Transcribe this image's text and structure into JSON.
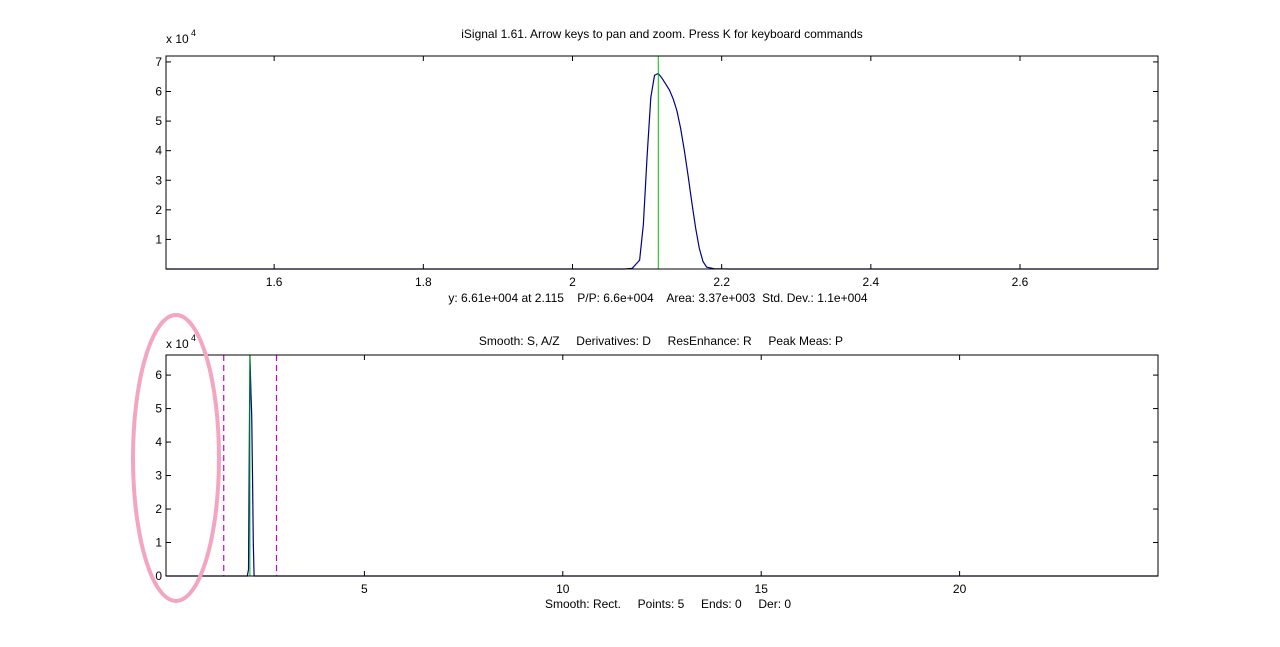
{
  "window": {
    "title": "iSignal 1.61. Arrow keys to pan and zoom. Press K for keyboard commands"
  },
  "colors": {
    "signal": "#00008b",
    "cursor": "#00c000",
    "range_marker": "#cc00cc",
    "annotation_ellipse": "#f4a6c1",
    "axis": "#000000"
  },
  "chart_data": [
    {
      "type": "line",
      "title": "iSignal 1.61. Arrow keys to pan and zoom. Press K for keyboard commands",
      "xlabel": "y: 6.61e+004 at 2.115    P/P: 6.6e+004    Area: 3.37e+003  Std. Dev.: 1.1e+004",
      "ylabel": "",
      "y_exponent_base": "x 10",
      "y_exponent_power": "4",
      "xlim": [
        1.455,
        2.785
      ],
      "ylim": [
        0,
        72000
      ],
      "xticks": [
        1.6,
        1.8,
        2.0,
        2.2,
        2.4,
        2.6
      ],
      "xtick_labels": [
        "1.6",
        "1.8",
        "2",
        "2.2",
        "2.4",
        "2.6"
      ],
      "yticks": [
        10000,
        20000,
        30000,
        40000,
        50000,
        60000,
        70000
      ],
      "ytick_labels": [
        "1",
        "2",
        "3",
        "4",
        "5",
        "6",
        "7"
      ],
      "grid": false,
      "cursor_x": 2.115,
      "series": [
        {
          "x": [
            1.455,
            2.04,
            2.07,
            2.08,
            2.09,
            2.095,
            2.1,
            2.105,
            2.11,
            2.115,
            2.12,
            2.125,
            2.13,
            2.135,
            2.14,
            2.145,
            2.15,
            2.155,
            2.16,
            2.165,
            2.17,
            2.175,
            2.18,
            2.19,
            2.21,
            2.785
          ],
          "y": [
            0,
            0,
            0,
            200,
            3000,
            15000,
            38000,
            58000,
            65500,
            66100,
            64500,
            62500,
            60500,
            57500,
            53500,
            47500,
            40000,
            31500,
            22500,
            14000,
            7000,
            2500,
            600,
            100,
            0,
            0
          ]
        }
      ]
    },
    {
      "type": "line",
      "title": "Smooth: S, A/Z     Derivatives: D     ResEnhance: R     Peak Meas: P",
      "xlabel": "Smooth: Rect.     Points: 5     Ends: 0     Der: 0",
      "ylabel": "",
      "y_exponent_base": "x 10",
      "y_exponent_power": "4",
      "xlim": [
        0,
        25
      ],
      "ylim": [
        0,
        66000
      ],
      "xticks": [
        5,
        10,
        15,
        20
      ],
      "xtick_labels": [
        "5",
        "10",
        "15",
        "20"
      ],
      "yticks": [
        0,
        10000,
        20000,
        30000,
        40000,
        50000,
        60000
      ],
      "ytick_labels": [
        "0",
        "1",
        "2",
        "3",
        "4",
        "5",
        "6"
      ],
      "grid": false,
      "cursor_x": 2.115,
      "range_markers": [
        1.455,
        2.785
      ],
      "series": [
        {
          "x": [
            0,
            2.05,
            2.08,
            2.1,
            2.115,
            2.14,
            2.16,
            2.18,
            2.2,
            2.22,
            25
          ],
          "y": [
            0,
            0,
            2000,
            40000,
            66100,
            55000,
            48000,
            30000,
            10000,
            0,
            0
          ]
        }
      ]
    }
  ]
}
